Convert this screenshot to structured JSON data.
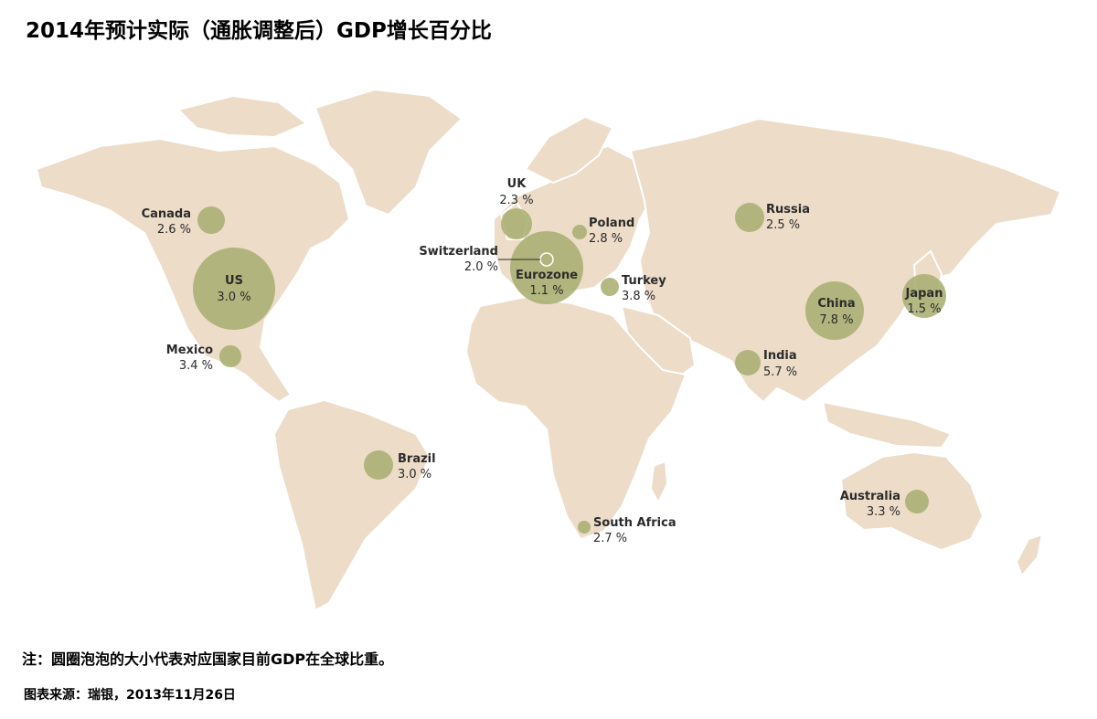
{
  "title": "2014年预计实际（通胀调整后）GDP增长百分比",
  "note": "注：圆圈泡泡的大小代表对应国家目前GDP在全球比重。",
  "source": "图表来源：瑞银，2013年11月26日",
  "colors": {
    "land": "#ecdcc8",
    "bubble": "#a7ad6f",
    "text": "#2b2b2b"
  },
  "regions": [
    {
      "name": "Canada",
      "value": "2.6 %"
    },
    {
      "name": "US",
      "value": "3.0 %"
    },
    {
      "name": "Mexico",
      "value": "3.4 %"
    },
    {
      "name": "Brazil",
      "value": "3.0 %"
    },
    {
      "name": "UK",
      "value": "2.3 %"
    },
    {
      "name": "Switzerland",
      "value": "2.0 %"
    },
    {
      "name": "Eurozone",
      "value": "1.1 %"
    },
    {
      "name": "Poland",
      "value": "2.8 %"
    },
    {
      "name": "Turkey",
      "value": "3.8 %"
    },
    {
      "name": "Russia",
      "value": "2.5 %"
    },
    {
      "name": "China",
      "value": "7.8 %"
    },
    {
      "name": "Japan",
      "value": "1.5 %"
    },
    {
      "name": "India",
      "value": "5.7 %"
    },
    {
      "name": "South Africa",
      "value": "2.7 %"
    },
    {
      "name": "Australia",
      "value": "3.3 %"
    }
  ]
}
